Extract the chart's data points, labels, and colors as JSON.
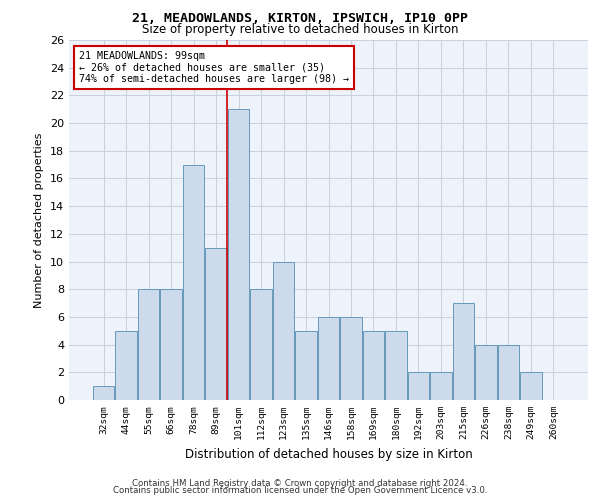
{
  "title_line1": "21, MEADOWLANDS, KIRTON, IPSWICH, IP10 0PP",
  "title_line2": "Size of property relative to detached houses in Kirton",
  "xlabel": "Distribution of detached houses by size in Kirton",
  "ylabel": "Number of detached properties",
  "categories": [
    "32sqm",
    "44sqm",
    "55sqm",
    "66sqm",
    "78sqm",
    "89sqm",
    "101sqm",
    "112sqm",
    "123sqm",
    "135sqm",
    "146sqm",
    "158sqm",
    "169sqm",
    "180sqm",
    "192sqm",
    "203sqm",
    "215sqm",
    "226sqm",
    "238sqm",
    "249sqm",
    "260sqm"
  ],
  "values": [
    1,
    5,
    8,
    8,
    17,
    11,
    21,
    8,
    10,
    5,
    6,
    6,
    5,
    5,
    2,
    2,
    7,
    4,
    4,
    2,
    0
  ],
  "bar_color": "#ccdaeb",
  "bar_edge_color": "#6699bb",
  "highlight_line_index": 6,
  "annotation_text_line1": "21 MEADOWLANDS: 99sqm",
  "annotation_text_line2": "← 26% of detached houses are smaller (35)",
  "annotation_text_line3": "74% of semi-detached houses are larger (98) →",
  "annotation_box_color": "#ffffff",
  "annotation_box_edge": "#cc0000",
  "ylim": [
    0,
    26
  ],
  "yticks": [
    0,
    2,
    4,
    6,
    8,
    10,
    12,
    14,
    16,
    18,
    20,
    22,
    24,
    26
  ],
  "red_line_color": "#cc0000",
  "grid_color": "#c8d0dc",
  "footer_line1": "Contains HM Land Registry data © Crown copyright and database right 2024.",
  "footer_line2": "Contains public sector information licensed under the Open Government Licence v3.0.",
  "bg_color": "#eef2fa"
}
